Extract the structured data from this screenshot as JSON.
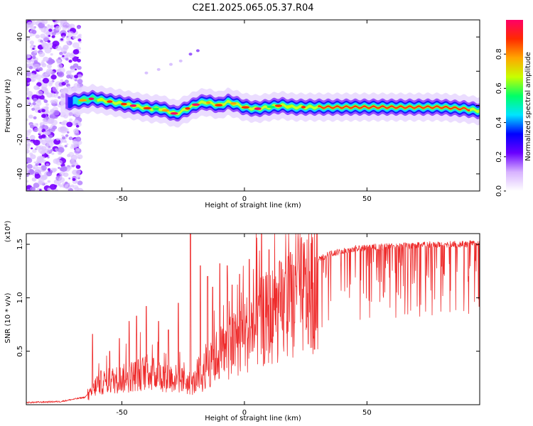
{
  "figure": {
    "title": "C2E1.2025.065.05.37.R04"
  },
  "chart_data": [
    {
      "type": "heatmap",
      "xlabel": "Height of straight line (km)",
      "ylabel": "Frequency (Hz)",
      "xlim": [
        -89,
        96
      ],
      "ylim": [
        -50,
        50
      ],
      "x_ticks": [
        "-50",
        "0",
        "50"
      ],
      "x_tick_values": [
        -50,
        0,
        50
      ],
      "y_ticks": [
        "-40",
        "-20",
        "0",
        "20",
        "40"
      ],
      "y_tick_values": [
        -40,
        -20,
        0,
        20,
        40
      ],
      "grid": false,
      "colorbar": {
        "label": "Normalized spectral amplitude",
        "range": [
          0,
          1
        ],
        "ticks": [
          "0.0",
          "0.2",
          "0.4",
          "0.6",
          "0.8"
        ],
        "tick_values": [
          0.0,
          0.2,
          0.4,
          0.6,
          0.8
        ],
        "colors": [
          "#ffffff",
          "#d7b2ff",
          "#6a00ff",
          "#0000ff",
          "#00e5ff",
          "#00ff66",
          "#c8ff00",
          "#ffa600",
          "#ff2a00",
          "#ff0066"
        ]
      },
      "ridge_frequency": {
        "x": [
          -72,
          -66,
          -62,
          -58,
          -54,
          -50,
          -46,
          -42,
          -38,
          -34,
          -30,
          -28,
          -25,
          -22,
          -19,
          -16,
          -13,
          -10,
          -7,
          -4,
          0,
          5,
          10,
          15,
          20,
          30,
          40,
          50,
          60,
          70,
          80,
          90,
          95
        ],
        "y": [
          2,
          3,
          4,
          3,
          2,
          1,
          0,
          -1,
          -2,
          -2,
          -4,
          -5,
          -3,
          -1,
          1,
          2,
          1,
          0,
          2,
          1,
          -1,
          -2,
          -1,
          0,
          -1,
          -1,
          -1,
          -1,
          -1,
          -1,
          -1,
          -2,
          -3
        ]
      },
      "faint_streak": {
        "x": [
          -40,
          -35,
          -30,
          -26,
          -22,
          -19
        ],
        "y": [
          19,
          21,
          24,
          26,
          30,
          32
        ]
      }
    },
    {
      "type": "line",
      "xlabel": "Height of straight line (km)",
      "ylabel": "SNR (10 * v/v)",
      "y_multiplier": "(x10⁴)",
      "xlim": [
        -89,
        96
      ],
      "ylim": [
        0,
        1.6
      ],
      "x_ticks": [
        "-50",
        "0",
        "50"
      ],
      "x_tick_values": [
        -50,
        0,
        50
      ],
      "y_ticks": [
        "0.5",
        "1.0",
        "1.5"
      ],
      "y_tick_values": [
        0.5,
        1.0,
        1.5
      ],
      "grid": false,
      "series": [
        {
          "color": "#ee2b2b",
          "envelope_x": [
            -89,
            -75,
            -65,
            -62,
            -60,
            -55,
            -50,
            -45,
            -40,
            -35,
            -30,
            -25,
            -22,
            -18,
            -15,
            -12,
            -10,
            -5,
            0,
            5,
            10,
            15,
            20,
            25,
            30,
            35,
            40,
            45,
            50,
            60,
            70,
            80,
            90,
            96
          ],
          "envelope_y": [
            0.02,
            0.03,
            0.07,
            0.15,
            0.25,
            0.28,
            0.3,
            0.34,
            0.38,
            0.34,
            0.32,
            0.28,
            0.24,
            0.3,
            0.4,
            0.55,
            0.6,
            0.68,
            0.82,
            0.92,
            1.02,
            1.1,
            1.2,
            1.3,
            1.38,
            1.44,
            1.47,
            1.49,
            1.5,
            1.51,
            1.52,
            1.53,
            1.53,
            1.55
          ],
          "peaks_x": [
            -62,
            -55,
            -51,
            -47,
            -44,
            -40,
            -35,
            -31,
            -27,
            -22,
            -18,
            -15,
            -13,
            -10,
            -7,
            -5,
            -2,
            2,
            7,
            10
          ],
          "peaks_y": [
            0.66,
            0.5,
            0.62,
            0.78,
            0.83,
            0.92,
            0.78,
            0.7,
            0.95,
            1.6,
            1.3,
            1.2,
            1.1,
            1.32,
            1.3,
            1.12,
            1.22,
            1.36,
            1.6,
            1.45
          ]
        }
      ]
    }
  ]
}
